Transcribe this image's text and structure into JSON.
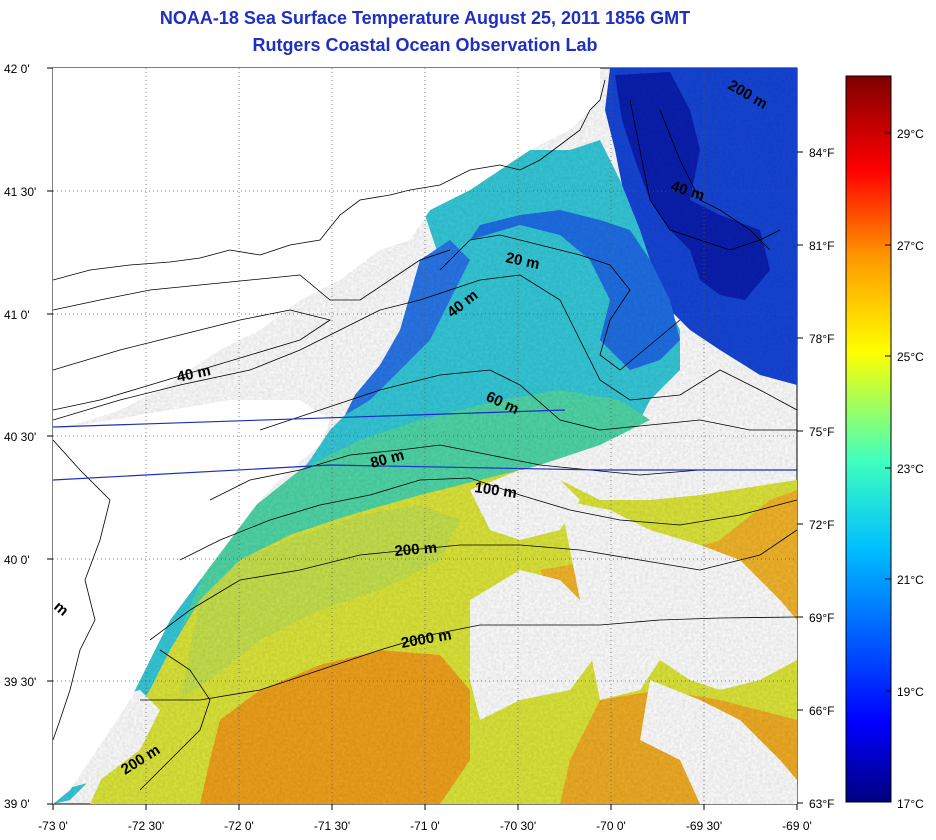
{
  "title": "NOAA-18 Sea Surface Temperature August 25, 2011 1856 GMT",
  "subtitle": "Rutgers Coastal Ocean Observation Lab",
  "lat_ticks": [
    "42 0'",
    "41 30'",
    "41 0'",
    "40 30'",
    "40 0'",
    "39 30'",
    "39 0'"
  ],
  "lon_ticks": [
    "-73 0'",
    "-72 30'",
    "-72 0'",
    "-71 30'",
    "-71 0'",
    "-70 30'",
    "-70 0'",
    "-69 30'",
    "-69 0'"
  ],
  "colorbar": {
    "celsius": [
      "29°C",
      "27°C",
      "25°C",
      "23°C",
      "21°C",
      "19°C",
      "17°C"
    ],
    "fahrenheit": [
      "84°F",
      "81°F",
      "78°F",
      "75°F",
      "72°F",
      "69°F",
      "66°F",
      "63°F"
    ],
    "min_celsius": 17,
    "max_celsius": 30
  },
  "contour_labels": {
    "c20": "20 m",
    "c40a": "40 m",
    "c40b": "40 m",
    "c40c": "40 m",
    "c60": "60 m",
    "c80": "80 m",
    "c100": "100 m",
    "c200a": "200 m",
    "c200b": "200 m",
    "c200c": "200 m",
    "c2000": "2000 m",
    "cpartial": "m"
  },
  "colors": {
    "title": "#1f2fbf",
    "colormap": [
      "#000080",
      "#0000ff",
      "#0080ff",
      "#00ffff",
      "#80ff80",
      "#ffff00",
      "#ff8000",
      "#ff0000",
      "#800000"
    ]
  }
}
